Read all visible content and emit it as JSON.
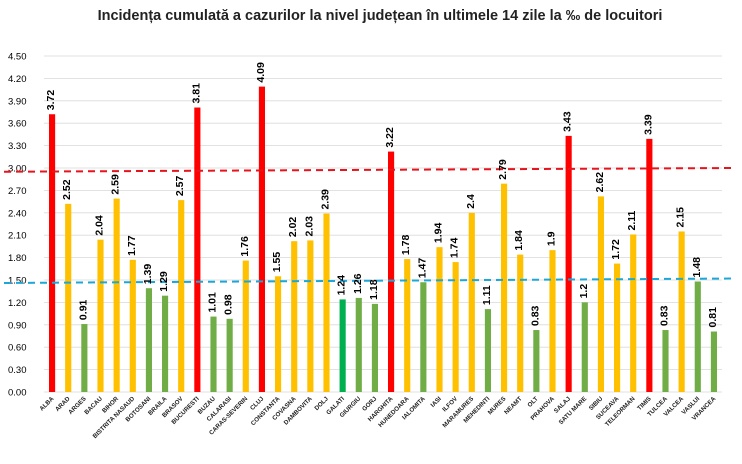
{
  "chart_data": {
    "type": "bar",
    "title": "Incidența cumulată a cazurilor la nivel județean în ultimele 14 zile la ‰ de locuitori",
    "xlabel": "",
    "ylabel": "",
    "ylim": [
      0,
      4.5
    ],
    "ytick_labels": [
      "0.00",
      "0.30",
      "0.60",
      "0.90",
      "1.20",
      "1.50",
      "1.80",
      "2.10",
      "2.40",
      "2.70",
      "3.00",
      "3.30",
      "3.60",
      "3.90",
      "4.20",
      "4.50"
    ],
    "grid": true,
    "legend": "none",
    "categories": [
      "ALBA",
      "ARAD",
      "ARGES",
      "BACAU",
      "BIHOR",
      "BISTRITA NASAUD",
      "BOTOSANI",
      "BRAILA",
      "BRASOV",
      "BUCURESTI",
      "BUZAU",
      "CALARASI",
      "CARAS-SEVERIN",
      "CLUJ",
      "CONSTANTA",
      "COVASNA",
      "DAMBOVITA",
      "DOLJ",
      "GALATI",
      "GIURGIU",
      "GORJ",
      "HARGHITA",
      "HUNEDOARA",
      "IALOMITA",
      "IASI",
      "ILFOV",
      "MARAMURES",
      "MEHEDINTI",
      "MURES",
      "NEAMT",
      "OLT",
      "PRAHOVA",
      "SALAJ",
      "SATU MARE",
      "SIBIU",
      "SUCEAVA",
      "TELEORMAN",
      "TIMIS",
      "TULCEA",
      "VALCEA",
      "VASLUI",
      "VRANCEA"
    ],
    "values": [
      3.72,
      2.52,
      0.91,
      2.04,
      2.59,
      1.77,
      1.39,
      1.29,
      2.57,
      3.81,
      1.01,
      0.98,
      1.76,
      4.09,
      1.55,
      2.02,
      2.03,
      2.39,
      1.24,
      1.26,
      1.18,
      3.22,
      1.78,
      1.47,
      1.94,
      1.74,
      2.4,
      1.11,
      2.79,
      1.84,
      0.83,
      1.9,
      3.43,
      1.2,
      2.62,
      1.72,
      2.11,
      3.39,
      0.83,
      2.15,
      1.48,
      0.81
    ],
    "value_labels": [
      "3.72",
      "2.52",
      "0.91",
      "2.04",
      "2.59",
      "1.77",
      "1.39",
      "1.29",
      "2.57",
      "3.81",
      "1.01",
      "0.98",
      "1.76",
      "4.09",
      "1.55",
      "2.02",
      "2.03",
      "2.39",
      "1.24",
      "1.26",
      "1.18",
      "3.22",
      "1.78",
      "1.47",
      "1.94",
      "1.74",
      "2.4",
      "1.11",
      "2.79",
      "1.84",
      "0.83",
      "1.9",
      "3.43",
      "1.2",
      "2.62",
      "1.72",
      "2.11",
      "3.39",
      "0.83",
      "2.15",
      "1.48",
      "0.81"
    ],
    "bar_colors": [
      "red",
      "yellow",
      "green",
      "yellow",
      "yellow",
      "yellow",
      "green",
      "green",
      "yellow",
      "red",
      "green",
      "green",
      "yellow",
      "red",
      "yellow",
      "yellow",
      "yellow",
      "yellow",
      "bright-green",
      "green",
      "green",
      "red",
      "yellow",
      "green",
      "yellow",
      "yellow",
      "yellow",
      "green",
      "yellow",
      "yellow",
      "green",
      "yellow",
      "red",
      "green",
      "yellow",
      "yellow",
      "yellow",
      "red",
      "green",
      "yellow",
      "green",
      "green"
    ],
    "colors": {
      "red": "#ff0000",
      "yellow": "#ffc000",
      "green": "#70ad47",
      "bright-green": "#00b050",
      "threshold_high": "#e8141c",
      "threshold_low": "#1aa7d9"
    },
    "reference_lines": [
      {
        "style": "dashed",
        "color": "threshold_high",
        "y_start": 2.95,
        "y_end": 3.0
      },
      {
        "style": "dashed",
        "color": "threshold_low",
        "y_start": 1.46,
        "y_end": 1.52
      }
    ]
  }
}
